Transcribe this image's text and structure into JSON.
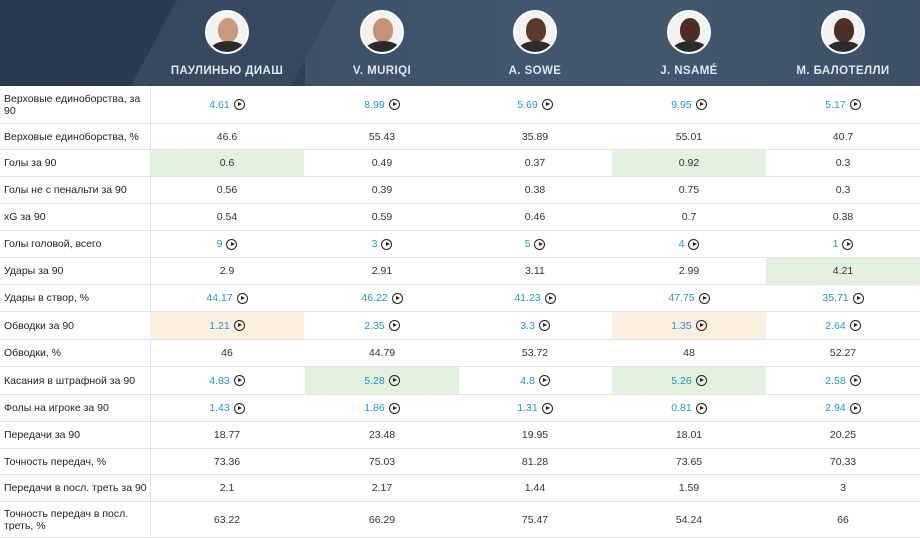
{
  "players": [
    {
      "name": "ПАУЛИНЬЮ ДИАШ",
      "skin": "#c99b7e"
    },
    {
      "name": "V. MURIQI",
      "skin": "#c49276"
    },
    {
      "name": "A. SOWE",
      "skin": "#5a3a2a"
    },
    {
      "name": "J. NSAMÉ",
      "skin": "#4a2e22"
    },
    {
      "name": "M. БАЛОТЕЛЛИ",
      "skin": "#4b3024"
    }
  ],
  "rows": [
    {
      "label": "Верховые единоборства, за 90",
      "cells": [
        {
          "v": "4.61",
          "link": true
        },
        {
          "v": "8.99",
          "link": true
        },
        {
          "v": "5.69",
          "link": true
        },
        {
          "v": "9.95",
          "link": true
        },
        {
          "v": "5.17",
          "link": true
        }
      ]
    },
    {
      "label": "Верховые единоборства, %",
      "cells": [
        {
          "v": "46.6"
        },
        {
          "v": "55.43"
        },
        {
          "v": "35.89"
        },
        {
          "v": "55.01"
        },
        {
          "v": "40.7"
        }
      ]
    },
    {
      "label": "Голы за 90",
      "cells": [
        {
          "v": "0.6",
          "hl": "green"
        },
        {
          "v": "0.49"
        },
        {
          "v": "0.37"
        },
        {
          "v": "0.92",
          "hl": "green"
        },
        {
          "v": "0.3"
        }
      ]
    },
    {
      "label": "Голы не с пенальти за 90",
      "cells": [
        {
          "v": "0.56"
        },
        {
          "v": "0.39"
        },
        {
          "v": "0.38"
        },
        {
          "v": "0.75"
        },
        {
          "v": "0.3"
        }
      ]
    },
    {
      "label": "xG за 90",
      "cells": [
        {
          "v": "0.54"
        },
        {
          "v": "0.59"
        },
        {
          "v": "0.46"
        },
        {
          "v": "0.7"
        },
        {
          "v": "0.38"
        }
      ]
    },
    {
      "label": "Голы головой, всего",
      "cells": [
        {
          "v": "9",
          "link": true
        },
        {
          "v": "3",
          "link": true
        },
        {
          "v": "5",
          "link": true
        },
        {
          "v": "4",
          "link": true
        },
        {
          "v": "1",
          "link": true
        }
      ]
    },
    {
      "label": "Удары за 90",
      "cells": [
        {
          "v": "2.9"
        },
        {
          "v": "2.91"
        },
        {
          "v": "3.11"
        },
        {
          "v": "2.99"
        },
        {
          "v": "4.21",
          "hl": "green"
        }
      ]
    },
    {
      "label": "Удары в створ, %",
      "cells": [
        {
          "v": "44.17",
          "link": true
        },
        {
          "v": "46.22",
          "link": true
        },
        {
          "v": "41.23",
          "link": true
        },
        {
          "v": "47.75",
          "link": true
        },
        {
          "v": "35.71",
          "link": true
        }
      ]
    },
    {
      "label": "Обводки за 90",
      "cells": [
        {
          "v": "1.21",
          "link": true,
          "hl": "orange"
        },
        {
          "v": "2.35",
          "link": true
        },
        {
          "v": "3.3",
          "link": true
        },
        {
          "v": "1.35",
          "link": true,
          "hl": "orange"
        },
        {
          "v": "2.64",
          "link": true
        }
      ]
    },
    {
      "label": "Обводки, %",
      "cells": [
        {
          "v": "46"
        },
        {
          "v": "44.79"
        },
        {
          "v": "53.72"
        },
        {
          "v": "48"
        },
        {
          "v": "52.27"
        }
      ]
    },
    {
      "label": "Касания в штрафной за 90",
      "cells": [
        {
          "v": "4.83",
          "link": true
        },
        {
          "v": "5.28",
          "link": true,
          "hl": "green"
        },
        {
          "v": "4.8",
          "link": true
        },
        {
          "v": "5.26",
          "link": true,
          "hl": "green"
        },
        {
          "v": "2.58",
          "link": true
        }
      ]
    },
    {
      "label": "Фолы на игроке за 90",
      "cells": [
        {
          "v": "1.43",
          "link": true
        },
        {
          "v": "1.86",
          "link": true
        },
        {
          "v": "1.31",
          "link": true
        },
        {
          "v": "0.81",
          "link": true
        },
        {
          "v": "2.94",
          "link": true
        }
      ]
    },
    {
      "label": "Передачи за 90",
      "cells": [
        {
          "v": "18.77"
        },
        {
          "v": "23.48"
        },
        {
          "v": "19.95"
        },
        {
          "v": "18.01"
        },
        {
          "v": "20.25"
        }
      ]
    },
    {
      "label": "Точность передач, %",
      "cells": [
        {
          "v": "73.36"
        },
        {
          "v": "75.03"
        },
        {
          "v": "81.28"
        },
        {
          "v": "73.65"
        },
        {
          "v": "70.33"
        }
      ]
    },
    {
      "label": "Передачи в посл. треть за 90",
      "cells": [
        {
          "v": "2.1"
        },
        {
          "v": "2.17"
        },
        {
          "v": "1.44"
        },
        {
          "v": "1.59"
        },
        {
          "v": "3"
        }
      ]
    },
    {
      "label": "Точность передач в посл. треть, %",
      "cells": [
        {
          "v": "63.22"
        },
        {
          "v": "66.29"
        },
        {
          "v": "75.47"
        },
        {
          "v": "54.24"
        },
        {
          "v": "66"
        }
      ]
    }
  ]
}
